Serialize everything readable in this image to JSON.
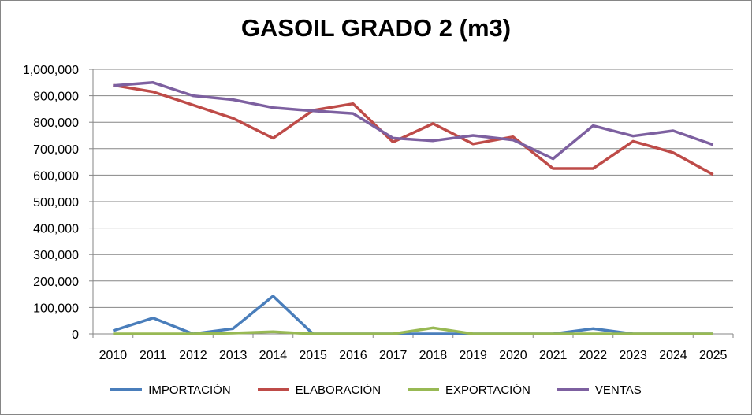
{
  "chart_data": {
    "type": "line",
    "title": "GASOIL GRADO 2 (m3)",
    "xlabel": "",
    "ylabel": "",
    "ylim": [
      0,
      1000000
    ],
    "y_ticks": [
      "0",
      "100,000",
      "200,000",
      "300,000",
      "400,000",
      "500,000",
      "600,000",
      "700,000",
      "800,000",
      "900,000",
      "1,000,000"
    ],
    "x": [
      "2010",
      "2011",
      "2012",
      "2013",
      "2014",
      "2015",
      "2016",
      "2017",
      "2018",
      "2019",
      "2020",
      "2021",
      "2022",
      "2023",
      "2024",
      "2025"
    ],
    "grid": "horizontal",
    "legend": "bottom",
    "series": [
      {
        "name": "IMPORTACIÓN",
        "color": "#4a7ebb",
        "values": [
          12000,
          60000,
          0,
          20000,
          143000,
          0,
          0,
          0,
          0,
          0,
          0,
          0,
          20000,
          0,
          0,
          0
        ]
      },
      {
        "name": "ELABORACIÓN",
        "color": "#be4b48",
        "values": [
          940000,
          915000,
          865000,
          815000,
          740000,
          845000,
          870000,
          725000,
          795000,
          718000,
          745000,
          625000,
          625000,
          728000,
          685000,
          602000
        ]
      },
      {
        "name": "EXPORTACIÓN",
        "color": "#98b954",
        "values": [
          0,
          0,
          0,
          3000,
          8000,
          0,
          0,
          0,
          23000,
          0,
          0,
          0,
          0,
          0,
          0,
          0
        ]
      },
      {
        "name": "VENTAS",
        "color": "#7d60a0",
        "values": [
          938000,
          950000,
          900000,
          885000,
          855000,
          843000,
          833000,
          740000,
          730000,
          750000,
          733000,
          662000,
          787000,
          748000,
          768000,
          715000
        ]
      }
    ]
  }
}
